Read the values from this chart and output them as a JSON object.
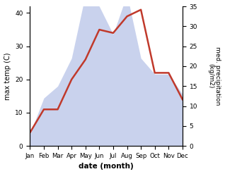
{
  "months": [
    "Jan",
    "Feb",
    "Mar",
    "Apr",
    "May",
    "Jun",
    "Jul",
    "Aug",
    "Sep",
    "Oct",
    "Nov",
    "Dec"
  ],
  "temperature": [
    4,
    11,
    11,
    20,
    26,
    35,
    34,
    39,
    41,
    22,
    22,
    14
  ],
  "precipitation": [
    3,
    12,
    15,
    22,
    38,
    35,
    28,
    38,
    22,
    18,
    18,
    13
  ],
  "temp_color": "#c0392b",
  "precip_color_fill": "#b8c4e8",
  "ylabel_left": "max temp (C)",
  "ylabel_right": "med. precipitation\n(kg/m2)",
  "xlabel": "date (month)",
  "ylim_left": [
    0,
    42
  ],
  "ylim_right": [
    0,
    35
  ],
  "yticks_left": [
    0,
    10,
    20,
    30,
    40
  ],
  "yticks_right": [
    0,
    5,
    10,
    15,
    20,
    25,
    30,
    35
  ],
  "precip_scale_factor": 1.2,
  "background_color": "#ffffff"
}
